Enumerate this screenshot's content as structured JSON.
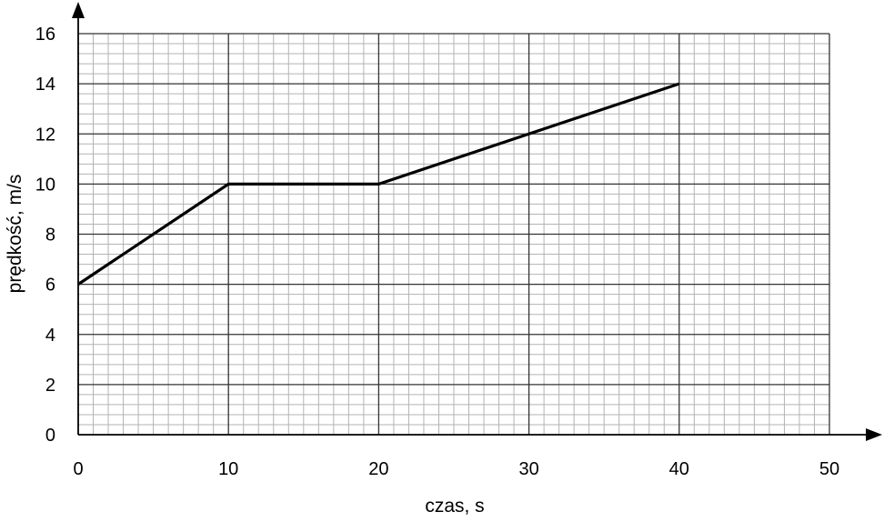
{
  "chart_data": {
    "type": "line",
    "title": "",
    "xlabel": "czas, s",
    "ylabel": "prędkość, m/s",
    "xlim": [
      0,
      50
    ],
    "ylim": [
      0,
      16
    ],
    "x_ticks": [
      0,
      10,
      20,
      30,
      40,
      50
    ],
    "y_ticks": [
      0,
      2,
      4,
      6,
      8,
      10,
      12,
      14,
      16
    ],
    "x_minor_step": 1,
    "y_minor_step": 0.4,
    "grid": true,
    "legend": "none",
    "series": [
      {
        "x": [
          0,
          10,
          20,
          40
        ],
        "y": [
          6,
          10,
          10,
          14
        ],
        "color": "#000000"
      }
    ]
  }
}
